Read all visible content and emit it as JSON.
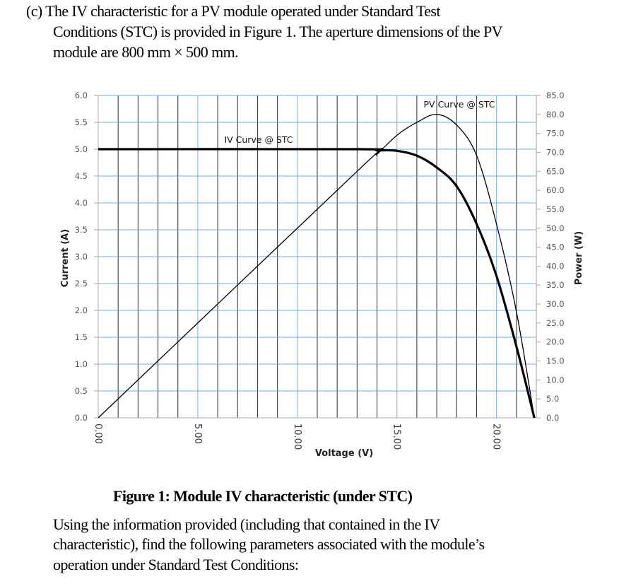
{
  "question": {
    "lines": [
      "(c) The IV characteristic for a PV module operated under Standard Test",
      "Conditions (STC) is provided in Figure 1. The aperture dimensions of the PV",
      "module are 800 mm × 500 mm."
    ]
  },
  "figure_caption": "Figure 1: Module IV characteristic (under STC)",
  "followup": {
    "lines": [
      "Using the information provided (including that contained in the IV",
      "characteristic), find the following parameters associated with the module’s",
      "operation under Standard Test Conditions:"
    ]
  },
  "chart_data": {
    "type": "line",
    "xlabel": "Voltage (V)",
    "ylabel": "Current (A)",
    "y2label": "Power (W)",
    "xlim": [
      0,
      22
    ],
    "ylim": [
      0,
      6
    ],
    "y2lim": [
      0,
      85
    ],
    "x_ticks": [
      "0.00",
      "5.00",
      "10.00",
      "15.00",
      "20.00"
    ],
    "y_ticks": [
      "0.0",
      "0.5",
      "1.0",
      "1.5",
      "2.0",
      "2.5",
      "3.0",
      "3.5",
      "4.0",
      "4.5",
      "5.0",
      "5.5",
      "6.0"
    ],
    "y2_ticks": [
      "0.0",
      "5.0",
      "10.0",
      "15.0",
      "20.0",
      "25.0",
      "30.0",
      "35.0",
      "40.0",
      "45.0",
      "50.0",
      "55.0",
      "60.0",
      "65.0",
      "70.0",
      "75.0",
      "80.0",
      "85.0"
    ],
    "grid": true,
    "grid_colors": {
      "minor_vertical": "#000000",
      "major": "#5b9bd5"
    },
    "series": [
      {
        "name": "IV Curve @ STC",
        "axis": "left",
        "x": [
          0,
          13,
          14,
          15,
          16,
          17,
          18,
          19,
          20,
          21,
          21.9
        ],
        "y": [
          5.0,
          5.0,
          4.98,
          4.97,
          4.88,
          4.66,
          4.31,
          3.61,
          2.64,
          1.33,
          0
        ]
      },
      {
        "name": "PV Curve @ STC",
        "axis": "right",
        "x": [
          0,
          13,
          14,
          15,
          16,
          17,
          18,
          19,
          20,
          21,
          21.9
        ],
        "y": [
          0,
          65.0,
          69.5,
          74.5,
          77.9,
          80.0,
          77.2,
          69.2,
          51.1,
          28.0,
          0
        ]
      }
    ]
  }
}
